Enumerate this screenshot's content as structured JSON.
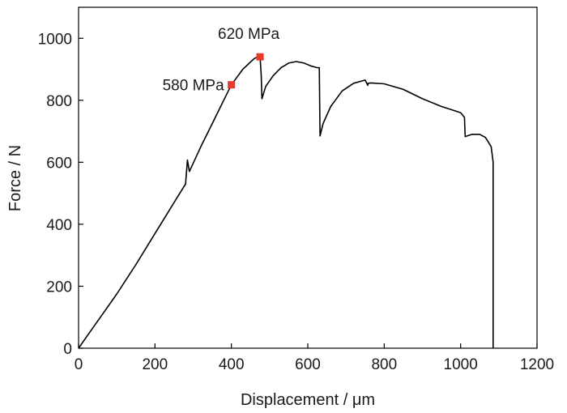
{
  "chart_data": {
    "type": "line",
    "title": "",
    "xlabel": "Displacement / μm",
    "ylabel": "Force / N",
    "xlim": [
      0,
      1200
    ],
    "ylim": [
      0,
      1100
    ],
    "xticks": [
      0,
      200,
      400,
      600,
      800,
      1000,
      1200
    ],
    "yticks": [
      0,
      200,
      400,
      600,
      800,
      1000
    ],
    "grid": false,
    "legend": "none",
    "line_color": "#000000",
    "marker_color": "#e8392b",
    "series": [
      {
        "x": [
          0,
          20,
          60,
          100,
          150,
          200,
          250,
          280,
          285,
          290,
          320,
          350,
          380,
          400,
          430,
          460,
          475,
          478,
          480,
          490,
          510,
          530,
          550,
          570,
          590,
          610,
          625,
          630,
          632,
          640,
          660,
          690,
          720,
          750,
          757,
          758,
          765,
          800,
          850,
          900,
          950,
          1000,
          1010,
          1012,
          1030,
          1050,
          1065,
          1080,
          1085,
          1085
        ],
        "y": [
          0,
          35,
          105,
          175,
          270,
          370,
          470,
          530,
          607,
          570,
          650,
          725,
          800,
          850,
          900,
          935,
          943,
          880,
          805,
          845,
          880,
          905,
          920,
          925,
          920,
          910,
          905,
          905,
          685,
          725,
          780,
          830,
          855,
          865,
          848,
          855,
          856,
          853,
          835,
          805,
          780,
          760,
          745,
          683,
          690,
          690,
          680,
          650,
          600,
          0
        ]
      }
    ],
    "annotations": [
      {
        "label": "580 MPa",
        "x": 400,
        "y": 850
      },
      {
        "label": "620 MPa",
        "x": 475,
        "y": 940
      }
    ]
  }
}
